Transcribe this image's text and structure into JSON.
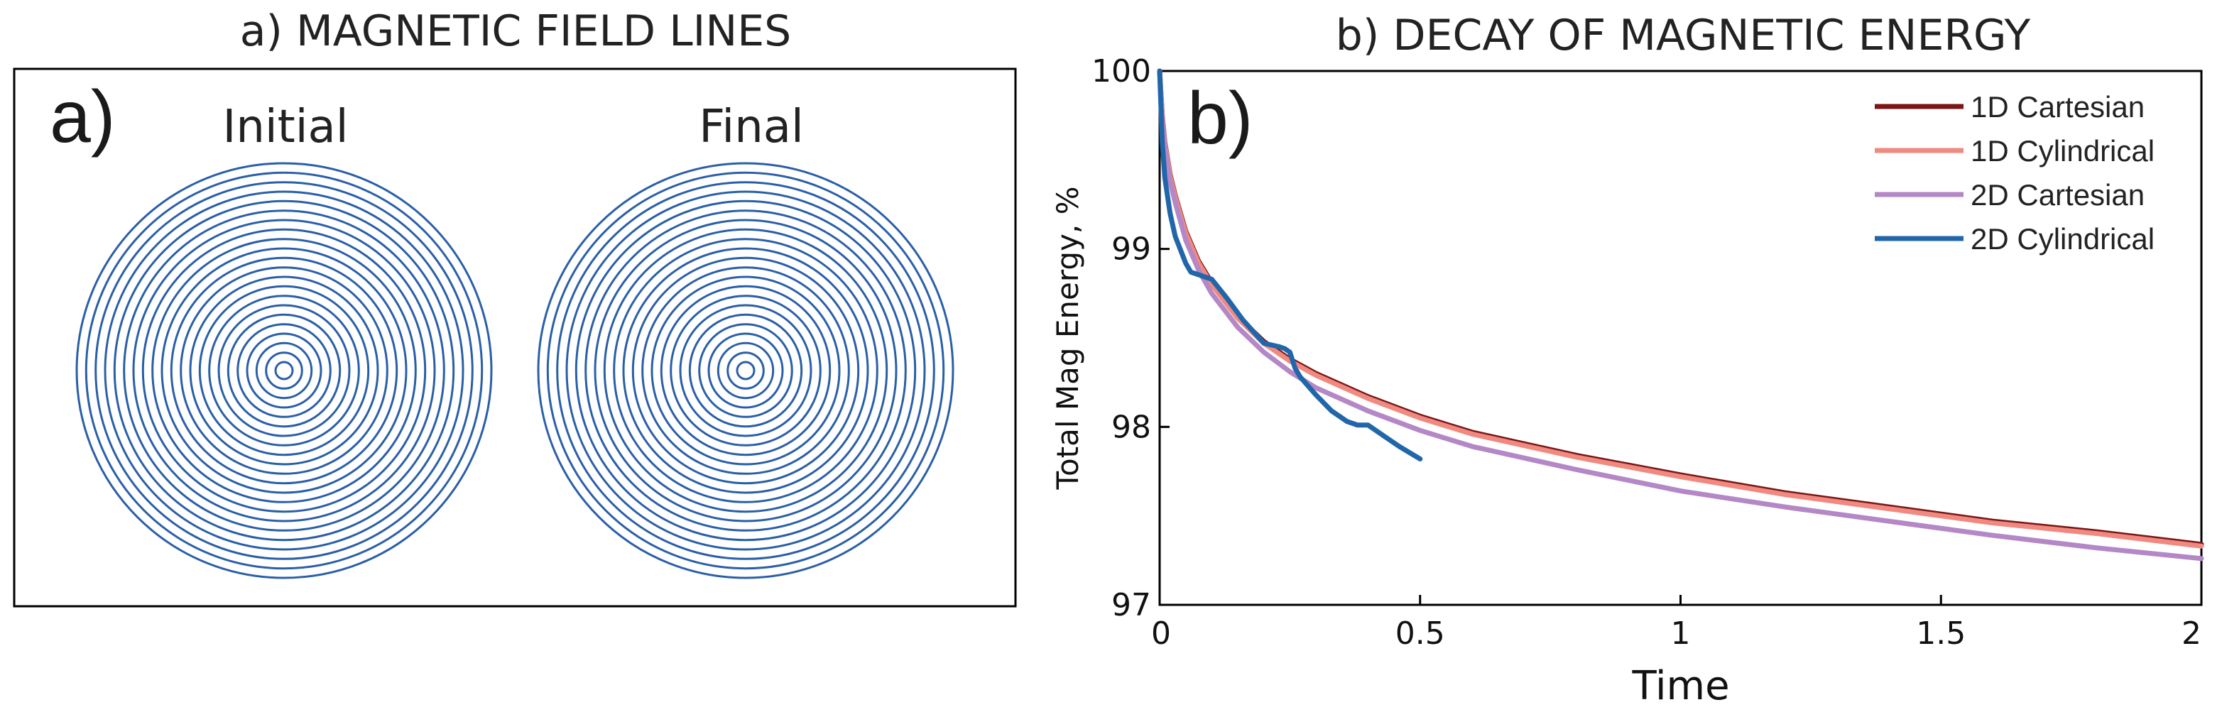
{
  "panel_a": {
    "title": "a) MAGNETIC FIELD LINES",
    "letter": "a)",
    "left_label": "Initial",
    "right_label": "Final",
    "ring_count": 22,
    "ring_color": "#2a5fa8"
  },
  "chart_data": {
    "type": "line",
    "title": "b) DECAY OF MAGNETIC ENERGY",
    "panel_letter": "b)",
    "xlabel": "Time",
    "ylabel": "Total Mag Energy, %",
    "xlim": [
      0,
      2
    ],
    "ylim": [
      97,
      100
    ],
    "xticks": [
      0,
      0.5,
      1,
      1.5,
      2
    ],
    "xtick_labels": [
      "0",
      "0.5",
      "1",
      "1.5",
      "2"
    ],
    "yticks": [
      97,
      98,
      99,
      100
    ],
    "ytick_labels": [
      "97",
      "98",
      "99",
      "100"
    ],
    "legend_position": "top-right",
    "series": [
      {
        "name": "1D Cartesian",
        "color": "#7a1616",
        "x": [
          0,
          0.005,
          0.01,
          0.02,
          0.03,
          0.05,
          0.075,
          0.1,
          0.15,
          0.2,
          0.25,
          0.3,
          0.4,
          0.5,
          0.6,
          0.8,
          1.0,
          1.2,
          1.4,
          1.6,
          1.8,
          2.0
        ],
        "y": [
          100,
          99.75,
          99.6,
          99.42,
          99.3,
          99.1,
          98.93,
          98.81,
          98.62,
          98.48,
          98.38,
          98.3,
          98.17,
          98.06,
          97.97,
          97.84,
          97.73,
          97.63,
          97.55,
          97.47,
          97.41,
          97.34
        ]
      },
      {
        "name": "1D Cylindrical",
        "color": "#f08a80",
        "x": [
          0,
          0.005,
          0.01,
          0.02,
          0.03,
          0.05,
          0.075,
          0.1,
          0.15,
          0.2,
          0.25,
          0.3,
          0.4,
          0.5,
          0.6,
          0.8,
          1.0,
          1.2,
          1.4,
          1.6,
          1.8,
          2.0
        ],
        "y": [
          100,
          99.74,
          99.59,
          99.41,
          99.29,
          99.09,
          98.92,
          98.8,
          98.61,
          98.47,
          98.37,
          98.29,
          98.16,
          98.05,
          97.96,
          97.83,
          97.72,
          97.62,
          97.54,
          97.46,
          97.4,
          97.33
        ]
      },
      {
        "name": "2D Cartesian",
        "color": "#b487c6",
        "x": [
          0,
          0.005,
          0.01,
          0.02,
          0.03,
          0.05,
          0.075,
          0.1,
          0.15,
          0.2,
          0.25,
          0.3,
          0.4,
          0.5,
          0.6,
          0.8,
          1.0,
          1.2,
          1.4,
          1.6,
          1.8,
          2.0
        ],
        "y": [
          100,
          99.72,
          99.57,
          99.38,
          99.26,
          99.05,
          98.88,
          98.75,
          98.56,
          98.42,
          98.31,
          98.22,
          98.09,
          97.98,
          97.89,
          97.76,
          97.64,
          97.55,
          97.47,
          97.39,
          97.32,
          97.26
        ]
      },
      {
        "name": "2D Cylindrical",
        "color": "#2266aa",
        "x": [
          0,
          0.005,
          0.01,
          0.02,
          0.03,
          0.05,
          0.06,
          0.08,
          0.1,
          0.13,
          0.16,
          0.2,
          0.23,
          0.24,
          0.25,
          0.26,
          0.27,
          0.3,
          0.33,
          0.36,
          0.38,
          0.4,
          0.43,
          0.46,
          0.5
        ],
        "y": [
          100,
          99.6,
          99.4,
          99.2,
          99.07,
          98.92,
          98.87,
          98.85,
          98.83,
          98.72,
          98.6,
          98.47,
          98.45,
          98.44,
          98.42,
          98.33,
          98.28,
          98.18,
          98.09,
          98.03,
          98.01,
          98.01,
          97.95,
          97.89,
          97.82
        ]
      }
    ]
  }
}
